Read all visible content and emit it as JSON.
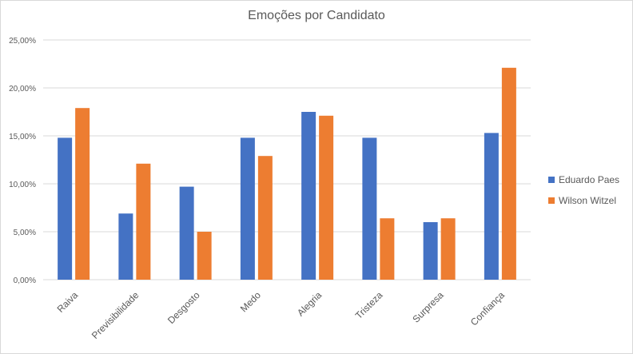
{
  "chart_data": {
    "type": "bar",
    "title": "Emoções por Candidato",
    "categories": [
      "Raiva",
      "Previsibilidade",
      "Desgosto",
      "Medo",
      "Alegria",
      "Tristeza",
      "Surpresa",
      "Confiança"
    ],
    "series": [
      {
        "name": "Eduardo Paes",
        "color": "#4472c4",
        "values": [
          14.8,
          6.9,
          9.7,
          14.8,
          17.5,
          14.8,
          6.0,
          15.3
        ]
      },
      {
        "name": "Wilson Witzel",
        "color": "#ed7d31",
        "values": [
          17.9,
          12.1,
          5.0,
          12.9,
          17.1,
          6.4,
          6.4,
          22.1
        ]
      }
    ],
    "yticks": [
      "0,00%",
      "5,00%",
      "10,00%",
      "15,00%",
      "20,00%",
      "25,00%"
    ],
    "ylim": [
      0,
      25
    ],
    "xlabel": "",
    "ylabel": "",
    "grid": true,
    "legend": "right"
  }
}
